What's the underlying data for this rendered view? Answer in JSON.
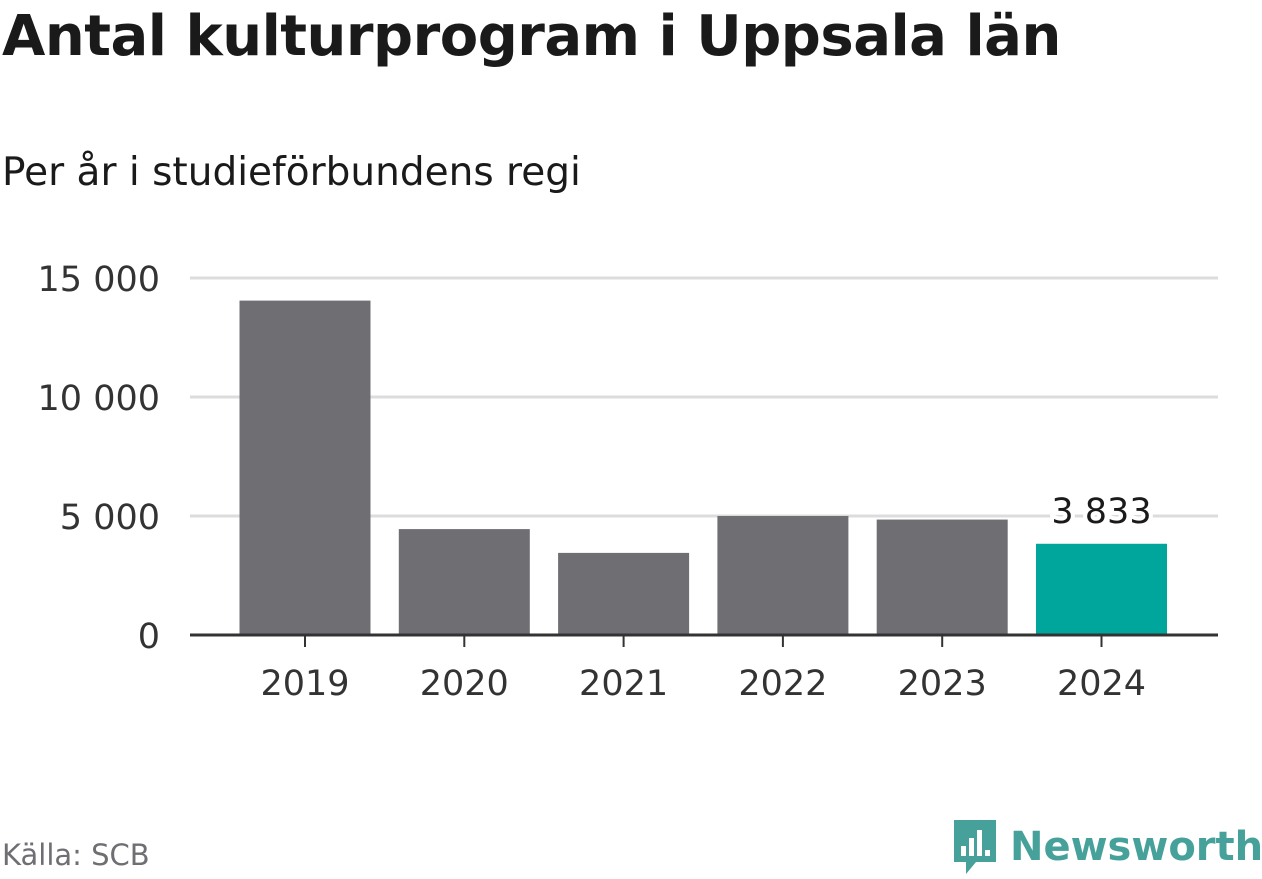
{
  "header": {
    "title": "Antal kulturprogram i Uppsala län",
    "subtitle": "Per år i studieförbundens regi"
  },
  "footer": {
    "source": "Källa: SCB",
    "brand": "Newsworthy",
    "brand_icon": "bar-chart-speech-bubble-icon"
  },
  "colors": {
    "bar": "#6f6e73",
    "highlight": "#00a59b",
    "grid": "#dcdcdc",
    "axis": "#333333",
    "brand": "#46a19b"
  },
  "chart_data": {
    "type": "bar",
    "categories": [
      "2019",
      "2020",
      "2021",
      "2022",
      "2023",
      "2024"
    ],
    "values": [
      14050,
      4450,
      3450,
      5000,
      4850,
      3833
    ],
    "highlight_index": 5,
    "data_labels": [
      {
        "index": 5,
        "text": "3 833"
      }
    ],
    "ylim": [
      0,
      15000
    ],
    "yticks": [
      0,
      5000,
      10000,
      15000
    ],
    "ytick_labels": [
      "0",
      "5 000",
      "10 000",
      "15 000"
    ],
    "grid": true,
    "legend": "none"
  }
}
